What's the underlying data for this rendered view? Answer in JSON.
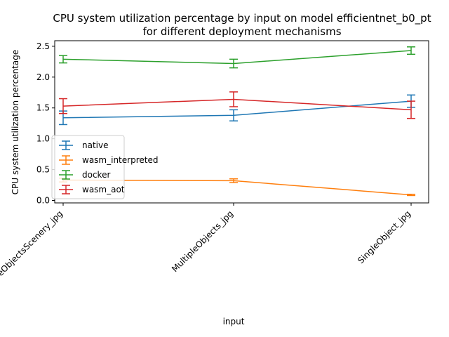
{
  "chart_data": {
    "type": "line",
    "title_line1": "CPU system utilization percentage by input on model efficientnet_b0_pt",
    "title_line2": "for different deployment mechanisms",
    "xlabel": "input",
    "ylabel": "CPU system utilization percentage",
    "categories": [
      "MultipleObjectsScenery_jpg",
      "MultipleObjects_jpg",
      "SingleObject_jpg"
    ],
    "ylim": [
      -0.04,
      2.59
    ],
    "yticks": [
      0.0,
      0.5,
      1.0,
      1.5,
      2.0,
      2.5
    ],
    "ytick_labels": [
      "0.0",
      "0.5",
      "1.0",
      "1.5",
      "2.0",
      "2.5"
    ],
    "grid": false,
    "legend_position": "lower-left",
    "series": [
      {
        "name": "native",
        "color": "#1f77b4",
        "values": [
          1.34,
          1.38,
          1.61
        ],
        "errors": [
          0.11,
          0.09,
          0.1
        ]
      },
      {
        "name": "wasm_interpreted",
        "color": "#ff7f0e",
        "values": [
          0.33,
          0.32,
          0.09
        ],
        "errors": [
          0.03,
          0.03,
          0.01
        ]
      },
      {
        "name": "docker",
        "color": "#2ca02c",
        "values": [
          2.29,
          2.22,
          2.43
        ],
        "errors": [
          0.06,
          0.07,
          0.06
        ]
      },
      {
        "name": "wasm_aot",
        "color": "#d62728",
        "values": [
          1.53,
          1.64,
          1.47
        ],
        "errors": [
          0.12,
          0.12,
          0.14
        ]
      }
    ]
  }
}
